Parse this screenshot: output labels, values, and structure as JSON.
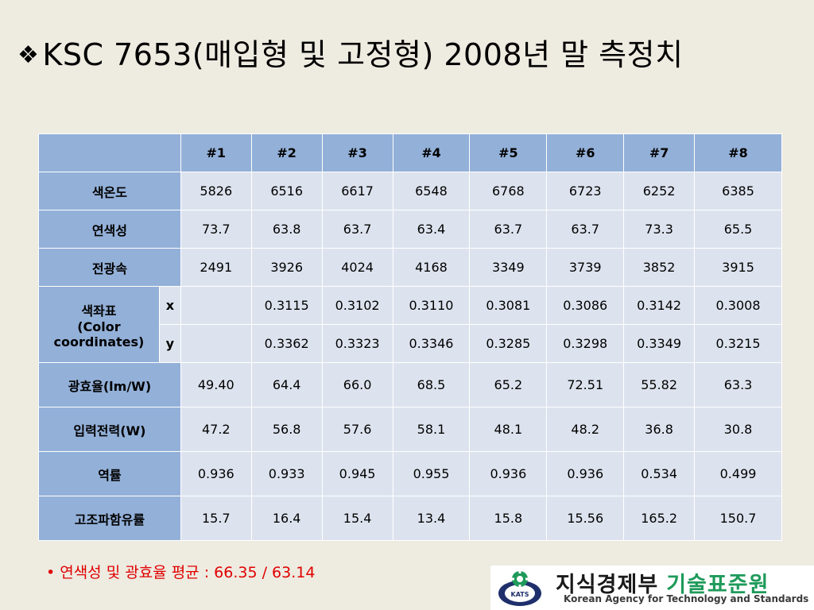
{
  "title": {
    "bullet": "❖",
    "text": "KSC 7653(매입형 및 고정형) 2008년 말 측정치"
  },
  "table": {
    "columns": [
      "",
      "#1",
      "#2",
      "#3",
      "#4",
      "#5",
      "#6",
      "#7",
      "#8"
    ],
    "rows": {
      "color_temp": {
        "label": "색온도",
        "values": [
          "5826",
          "6516",
          "6617",
          "6548",
          "6768",
          "6723",
          "6252",
          "6385"
        ]
      },
      "cri": {
        "label": "연색성",
        "values": [
          "73.7",
          "63.8",
          "63.7",
          "63.4",
          "63.7",
          "63.7",
          "73.3",
          "65.5"
        ]
      },
      "flux": {
        "label": "전광속",
        "values": [
          "2491",
          "3926",
          "4024",
          "4168",
          "3349",
          "3739",
          "3852",
          "3915"
        ]
      },
      "coords": {
        "label_line1": "색좌표",
        "label_line2": "(Color",
        "label_line3": "coordinates)",
        "x_label": "x",
        "y_label": "y",
        "x_values": [
          "",
          "0.3115",
          "0.3102",
          "0.3110",
          "0.3081",
          "0.3086",
          "0.3142",
          "0.3008"
        ],
        "y_values": [
          "",
          "0.3362",
          "0.3323",
          "0.3346",
          "0.3285",
          "0.3298",
          "0.3349",
          "0.3215"
        ]
      },
      "efficacy": {
        "label": "광효율(lm/W)",
        "values": [
          "49.40",
          "64.4",
          "66.0",
          "68.5",
          "65.2",
          "72.51",
          "55.82",
          "63.3"
        ]
      },
      "power": {
        "label": "입력전력(W)",
        "values": [
          "47.2",
          "56.8",
          "57.6",
          "58.1",
          "48.1",
          "48.2",
          "36.8",
          "30.8"
        ]
      },
      "pf": {
        "label": "역률",
        "values": [
          "0.936",
          "0.933",
          "0.945",
          "0.955",
          "0.936",
          "0.936",
          "0.534",
          "0.499"
        ]
      },
      "thd": {
        "label": "고조파함유률",
        "values": [
          "15.7",
          "16.4",
          "15.4",
          "13.4",
          "15.8",
          "15.56",
          "165.2",
          "150.7"
        ]
      }
    }
  },
  "note": {
    "bullet": "•",
    "text": "연색성 및 광효율 평균 : 66.35 / 63.14"
  },
  "logo": {
    "emblem_text": "KATS",
    "name_dark": "지식경제부",
    "name_green": "기술표준원",
    "subtitle": "Korean Agency for Technology and Standards"
  },
  "colors": {
    "background": "#eeebe1",
    "header_fill": "#93b0d8",
    "cell_fill": "#dde3ee",
    "note_red": "#e00000",
    "logo_green": "#1e9a5a",
    "logo_navy": "#1f2f6b"
  }
}
